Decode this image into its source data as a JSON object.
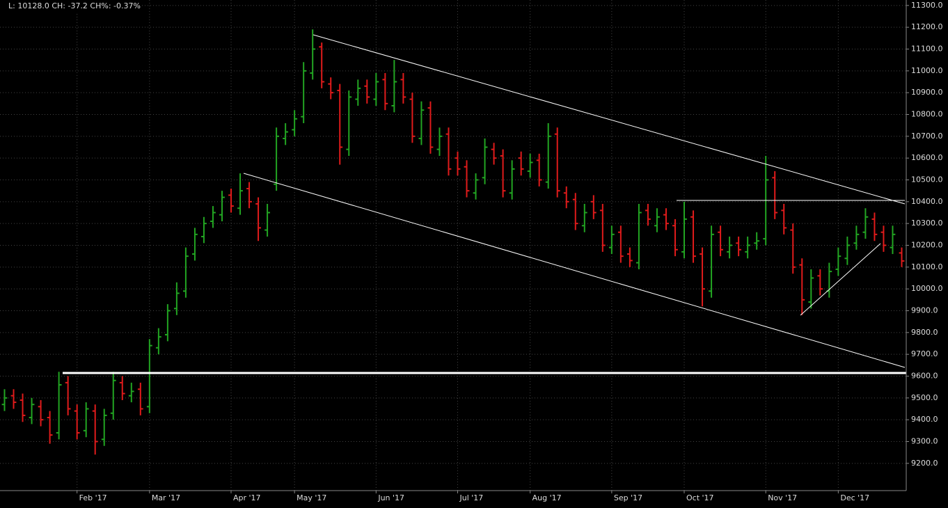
{
  "chart_data": {
    "type": "ohlc",
    "status": "L: 10128.0 CH: -37.2 CH%: -0.37%",
    "up_color": "#22a522",
    "down_color": "#e01b1b",
    "grid": true,
    "ylim": [
      9075,
      11325
    ],
    "yticks": [
      {
        "value": 9200,
        "label": "9200.0"
      },
      {
        "value": 9300,
        "label": "9300.0"
      },
      {
        "value": 9400,
        "label": "9400.0"
      },
      {
        "value": 9500,
        "label": "9500.0"
      },
      {
        "value": 9600,
        "label": "9600.0"
      },
      {
        "value": 9700,
        "label": "9700.0"
      },
      {
        "value": 9800,
        "label": "9800.0"
      },
      {
        "value": 9900,
        "label": "9900.0"
      },
      {
        "value": 10000,
        "label": "10000.0"
      },
      {
        "value": 10100,
        "label": "10100.0"
      },
      {
        "value": 10200,
        "label": "10200.0"
      },
      {
        "value": 10300,
        "label": "10300.0"
      },
      {
        "value": 10400,
        "label": "10400.0"
      },
      {
        "value": 10500,
        "label": "10500.0"
      },
      {
        "value": 10600,
        "label": "10600.0"
      },
      {
        "value": 10700,
        "label": "10700.0"
      },
      {
        "value": 10800,
        "label": "10800.0"
      },
      {
        "value": 10900,
        "label": "10900.0"
      },
      {
        "value": 11000,
        "label": "11000.0"
      },
      {
        "value": 11100,
        "label": "11100.0"
      },
      {
        "value": 11200,
        "label": "11200.0"
      },
      {
        "value": 11300,
        "label": "11300.0"
      }
    ],
    "categories": [
      null,
      null,
      null,
      null,
      null,
      null,
      null,
      null,
      "Feb '17",
      null,
      null,
      null,
      null,
      null,
      null,
      null,
      "Mar '17",
      null,
      null,
      null,
      null,
      null,
      null,
      null,
      null,
      "Apr '17",
      null,
      null,
      null,
      null,
      null,
      null,
      "May '17",
      null,
      null,
      null,
      null,
      null,
      null,
      null,
      null,
      "Jun '17",
      null,
      null,
      null,
      null,
      null,
      null,
      null,
      null,
      "Jul '17",
      null,
      null,
      null,
      null,
      null,
      null,
      null,
      "Aug '17",
      null,
      null,
      null,
      null,
      null,
      null,
      null,
      null,
      "Sep '17",
      null,
      null,
      null,
      null,
      null,
      null,
      null,
      "Oct '17",
      null,
      null,
      null,
      null,
      null,
      null,
      null,
      null,
      "Nov '17",
      null,
      null,
      null,
      null,
      null,
      null,
      null,
      "Dec '17",
      null,
      null,
      null,
      null,
      null,
      null,
      null
    ],
    "open": [
      9470,
      9510,
      9490,
      9410,
      9460,
      9410,
      9340,
      9570,
      9440,
      9350,
      9440,
      9310,
      9430,
      9570,
      9510,
      9540,
      9460,
      9730,
      9790,
      9910,
      9990,
      10160,
      10240,
      10310,
      10340,
      10430,
      10370,
      10460,
      10390,
      10270,
      10480,
      10690,
      10730,
      10790,
      10990,
      11110,
      10940,
      10910,
      10640,
      10870,
      10930,
      10870,
      10960,
      10840,
      10960,
      10870,
      10690,
      10830,
      10640,
      10710,
      10600,
      10560,
      10440,
      10510,
      10640,
      10610,
      10440,
      10600,
      10540,
      10590,
      10490,
      10710,
      10440,
      10410,
      10290,
      10400,
      10360,
      10190,
      10260,
      10160,
      10120,
      10360,
      10290,
      10340,
      10290,
      10170,
      10330,
      10160,
      9990,
      10260,
      10170,
      10210,
      10170,
      10210,
      10230,
      10510,
      10360,
      10270,
      10110,
      9940,
      10060,
      9990,
      10090,
      10140,
      10210,
      10260,
      10320,
      10260,
      10190,
      10165
    ],
    "high": [
      9540,
      9540,
      9520,
      9500,
      9490,
      9440,
      9620,
      9600,
      9470,
      9480,
      9470,
      9450,
      9620,
      9600,
      9570,
      9570,
      9770,
      9820,
      9930,
      10030,
      10190,
      10280,
      10330,
      10380,
      10450,
      10460,
      10530,
      10490,
      10420,
      10390,
      10740,
      10760,
      10820,
      11040,
      11190,
      11130,
      10970,
      10940,
      10910,
      10960,
      10960,
      10990,
      10990,
      11050,
      10990,
      10900,
      10860,
      10860,
      10740,
      10740,
      10630,
      10590,
      10530,
      10690,
      10670,
      10640,
      10590,
      10630,
      10620,
      10620,
      10760,
      10740,
      10470,
      10440,
      10390,
      10430,
      10390,
      10290,
      10290,
      10190,
      10390,
      10390,
      10370,
      10370,
      10320,
      10400,
      10360,
      10190,
      10290,
      10290,
      10240,
      10240,
      10240,
      10260,
      10610,
      10540,
      10390,
      10300,
      10140,
      10090,
      10090,
      10120,
      10190,
      10240,
      10290,
      10370,
      10350,
      10290,
      10290,
      10190
    ],
    "low": [
      9440,
      9450,
      9390,
      9380,
      9370,
      9290,
      9310,
      9420,
      9310,
      9320,
      9240,
      9280,
      9400,
      9490,
      9480,
      9420,
      9430,
      9700,
      9760,
      9880,
      9960,
      10130,
      10210,
      10280,
      10310,
      10350,
      10340,
      10370,
      10220,
      10240,
      10450,
      10660,
      10700,
      10760,
      10960,
      10920,
      10870,
      10570,
      10610,
      10840,
      10850,
      10840,
      10820,
      10810,
      10850,
      10670,
      10660,
      10620,
      10610,
      10520,
      10520,
      10420,
      10410,
      10480,
      10570,
      10420,
      10410,
      10520,
      10510,
      10470,
      10460,
      10420,
      10370,
      10270,
      10260,
      10320,
      10170,
      10160,
      10120,
      10100,
      10090,
      10290,
      10260,
      10270,
      10150,
      10140,
      10120,
      9920,
      9960,
      10150,
      10140,
      10150,
      10140,
      10180,
      10200,
      10320,
      10250,
      10070,
      9880,
      9910,
      9970,
      9960,
      10060,
      10110,
      10180,
      10230,
      10220,
      10170,
      10160,
      10100
    ],
    "close": [
      9500,
      9480,
      9420,
      9470,
      9400,
      9330,
      9560,
      9450,
      9340,
      9450,
      9300,
      9420,
      9580,
      9520,
      9530,
      9450,
      9740,
      9780,
      9900,
      9980,
      10150,
      10250,
      10300,
      10350,
      10420,
      10380,
      10450,
      10400,
      10280,
      10350,
      10700,
      10720,
      10780,
      11000,
      11100,
      10950,
      10900,
      10650,
      10880,
      10920,
      10880,
      10950,
      10850,
      10950,
      10880,
      10700,
      10820,
      10650,
      10700,
      10550,
      10550,
      10450,
      10500,
      10650,
      10600,
      10450,
      10550,
      10550,
      10580,
      10500,
      10700,
      10450,
      10400,
      10300,
      10350,
      10350,
      10200,
      10250,
      10150,
      10130,
      10350,
      10320,
      10330,
      10300,
      10180,
      10320,
      10150,
      10000,
      10250,
      10180,
      10200,
      10180,
      10200,
      10220,
      10500,
      10350,
      10280,
      10100,
      9950,
      10050,
      10000,
      10080,
      10150,
      10200,
      10250,
      10330,
      10250,
      10200,
      10250,
      10128
    ]
  }
}
